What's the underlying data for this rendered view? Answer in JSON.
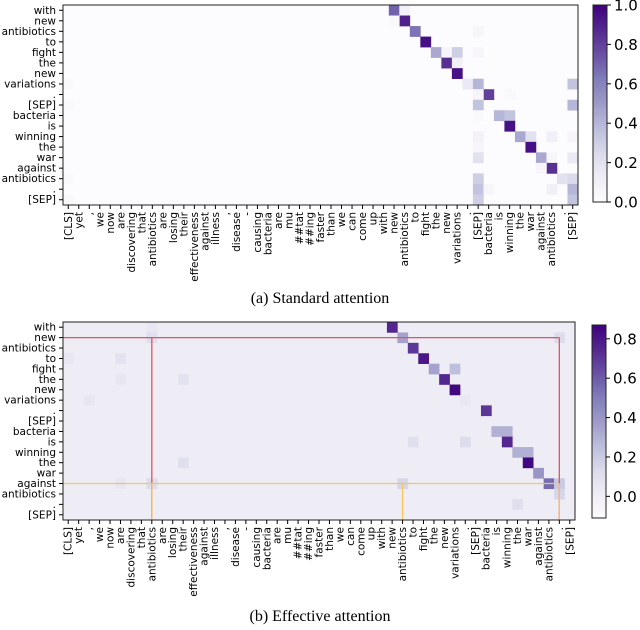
{
  "chart_data": [
    {
      "type": "heatmap",
      "caption": "(a) Standard attention",
      "rows": [
        "with",
        "new",
        "antibiotics",
        "to",
        "fight",
        "the",
        "new",
        "variations",
        ".",
        "[SEP]",
        "bacteria",
        "is",
        "winning",
        "the",
        "war",
        "against",
        "antibiotics",
        ".",
        "[SEP]"
      ],
      "columns": [
        "[CLS]",
        "yet",
        ",",
        "we",
        "now",
        "are",
        "discovering",
        "that",
        "antibiotics",
        "are",
        "losing",
        "their",
        "effectiveness",
        "against",
        "illness",
        ",",
        "disease",
        "-",
        "causing",
        "bacteria",
        "are",
        "mu",
        "##tat",
        "##ing",
        "faster",
        "than",
        "we",
        "can",
        "come",
        "up",
        "with",
        "new",
        "antibiotics",
        "to",
        "fight",
        "the",
        "new",
        "variations",
        ".",
        "[SEP]",
        "bacteria",
        "is",
        "winning",
        "the",
        "war",
        "against",
        "antibiotics",
        ".",
        "[SEP]"
      ],
      "default_value": 0.0,
      "cells": [
        [
          0,
          31,
          0.7
        ],
        [
          0,
          32,
          0.08
        ],
        [
          1,
          32,
          0.9
        ],
        [
          1,
          31,
          0.03
        ],
        [
          2,
          33,
          0.65
        ],
        [
          2,
          39,
          0.05
        ],
        [
          3,
          34,
          0.95
        ],
        [
          4,
          35,
          0.45
        ],
        [
          4,
          36,
          0.05
        ],
        [
          4,
          37,
          0.3
        ],
        [
          4,
          39,
          0.05
        ],
        [
          5,
          36,
          0.85
        ],
        [
          5,
          37,
          0.1
        ],
        [
          6,
          37,
          0.95
        ],
        [
          7,
          38,
          0.15
        ],
        [
          7,
          39,
          0.4
        ],
        [
          7,
          48,
          0.35
        ],
        [
          7,
          0,
          0.03
        ],
        [
          8,
          40,
          0.8
        ],
        [
          8,
          39,
          0.05
        ],
        [
          8,
          42,
          0.03
        ],
        [
          9,
          39,
          0.35
        ],
        [
          9,
          48,
          0.4
        ],
        [
          9,
          0,
          0.03
        ],
        [
          10,
          41,
          0.4
        ],
        [
          10,
          42,
          0.35
        ],
        [
          10,
          39,
          0.03
        ],
        [
          11,
          42,
          0.95
        ],
        [
          12,
          43,
          0.45
        ],
        [
          12,
          44,
          0.2
        ],
        [
          12,
          39,
          0.08
        ],
        [
          12,
          46,
          0.1
        ],
        [
          12,
          48,
          0.05
        ],
        [
          13,
          44,
          0.95
        ],
        [
          13,
          39,
          0.05
        ],
        [
          14,
          45,
          0.45
        ],
        [
          14,
          39,
          0.2
        ],
        [
          14,
          48,
          0.15
        ],
        [
          14,
          46,
          0.05
        ],
        [
          15,
          46,
          0.85
        ],
        [
          15,
          45,
          0.05
        ],
        [
          16,
          47,
          0.2
        ],
        [
          16,
          48,
          0.25
        ],
        [
          16,
          39,
          0.3
        ],
        [
          16,
          0,
          0.03
        ],
        [
          17,
          39,
          0.35
        ],
        [
          17,
          48,
          0.4
        ],
        [
          17,
          40,
          0.05
        ],
        [
          17,
          46,
          0.1
        ],
        [
          18,
          39,
          0.3
        ],
        [
          18,
          48,
          0.35
        ],
        [
          18,
          0,
          0.03
        ]
      ],
      "colorbar": {
        "range": [
          0.0,
          1.0
        ],
        "ticks": [
          "0.0",
          "0.2",
          "0.4",
          "0.6",
          "0.8",
          "1.0"
        ],
        "colormap": "Purples"
      },
      "highlights": []
    },
    {
      "type": "heatmap",
      "caption": "(b) Effective attention",
      "rows": [
        "with",
        "new",
        "antibiotics",
        "to",
        "fight",
        "the",
        "new",
        "variations",
        ".",
        "[SEP]",
        "bacteria",
        "is",
        "winning",
        "the",
        "war",
        "against",
        "antibiotics",
        ".",
        "[SEP]"
      ],
      "columns": [
        "[CLS]",
        "yet",
        ",",
        "we",
        "now",
        "are",
        "discovering",
        "that",
        "antibiotics",
        "are",
        "losing",
        "their",
        "effectiveness",
        "against",
        "illness",
        ",",
        "disease",
        "-",
        "causing",
        "bacteria",
        "are",
        "mu",
        "##tat",
        "##ing",
        "faster",
        "than",
        "we",
        "can",
        "come",
        "up",
        "with",
        "new",
        "antibiotics",
        "to",
        "fight",
        "the",
        "new",
        "variations",
        ".",
        "[SEP]",
        "bacteria",
        "is",
        "winning",
        "the",
        "war",
        "against",
        "antibiotics",
        ".",
        "[SEP]"
      ],
      "default_value": 0.02,
      "cells": [
        [
          0,
          31,
          0.75
        ],
        [
          0,
          8,
          0.06
        ],
        [
          1,
          32,
          0.35
        ],
        [
          1,
          8,
          0.1
        ],
        [
          1,
          47,
          0.12
        ],
        [
          2,
          33,
          0.7
        ],
        [
          3,
          34,
          0.8
        ],
        [
          3,
          5,
          0.08
        ],
        [
          3,
          0,
          0.06
        ],
        [
          4,
          35,
          0.35
        ],
        [
          4,
          37,
          0.25
        ],
        [
          5,
          36,
          0.75
        ],
        [
          5,
          5,
          0.06
        ],
        [
          5,
          11,
          0.08
        ],
        [
          6,
          37,
          0.85
        ],
        [
          7,
          38,
          0.05
        ],
        [
          7,
          2,
          0.06
        ],
        [
          8,
          40,
          0.7
        ],
        [
          10,
          41,
          0.3
        ],
        [
          10,
          42,
          0.3
        ],
        [
          11,
          42,
          0.75
        ],
        [
          11,
          33,
          0.1
        ],
        [
          11,
          38,
          0.12
        ],
        [
          12,
          43,
          0.3
        ],
        [
          12,
          44,
          0.3
        ],
        [
          13,
          44,
          0.85
        ],
        [
          13,
          11,
          0.1
        ],
        [
          14,
          45,
          0.4
        ],
        [
          15,
          46,
          0.55
        ],
        [
          15,
          47,
          0.2
        ],
        [
          15,
          32,
          0.15
        ],
        [
          15,
          8,
          0.12
        ],
        [
          15,
          5,
          0.06
        ],
        [
          16,
          47,
          0.15
        ],
        [
          17,
          43,
          0.1
        ]
      ],
      "colorbar": {
        "range": [
          -0.11,
          0.87
        ],
        "ticks": [
          "0.0",
          "0.2",
          "0.4",
          "0.6",
          "0.8"
        ],
        "colormap": "Purples"
      },
      "highlights": [
        {
          "color": "#e8505b",
          "row": 1,
          "cols": [
            8,
            47
          ]
        },
        {
          "color": "#f4c55a",
          "row": 15,
          "cols": [
            8,
            32,
            47
          ]
        }
      ]
    }
  ]
}
